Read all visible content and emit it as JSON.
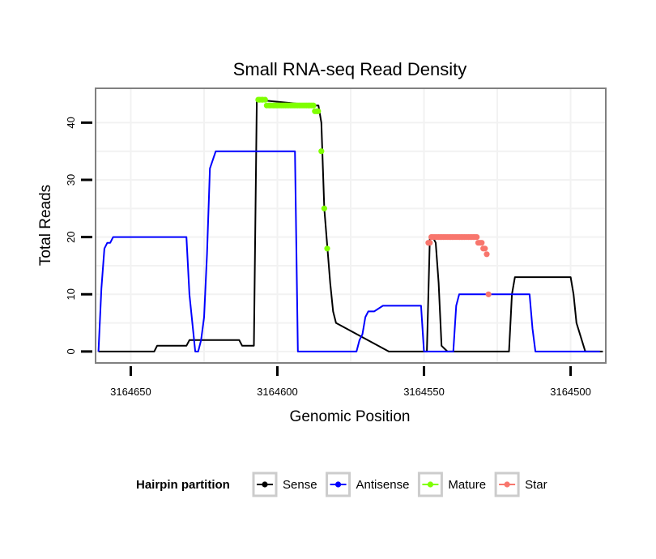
{
  "chart_data": {
    "type": "line",
    "title": "Small RNA-seq Read Density",
    "xlabel": "Genomic Position",
    "ylabel": "Total Reads",
    "x_reversed": true,
    "xlim": [
      3164662,
      3164488
    ],
    "ylim": [
      -2,
      46
    ],
    "x_ticks": [
      3164650,
      3164600,
      3164550,
      3164500
    ],
    "x_tick_labels": [
      "3164650",
      "3164600",
      "3164550",
      "3164500"
    ],
    "y_ticks": [
      0,
      10,
      20,
      30,
      40
    ],
    "y_tick_labels": [
      "0",
      "10",
      "20",
      "30",
      "40"
    ],
    "grid": true,
    "legend_title": "Hairpin partition",
    "legend_position": "bottom",
    "series": [
      {
        "name": "Sense",
        "color": "#000000",
        "points": false,
        "x": [
          3164661,
          3164642,
          3164641,
          3164637,
          3164636,
          3164631,
          3164630,
          3164613,
          3164612,
          3164608,
          3164607,
          3164587,
          3164586,
          3164585,
          3164584,
          3164582,
          3164581,
          3164580,
          3164562,
          3164561,
          3164549,
          3164548,
          3164547,
          3164546,
          3164545,
          3164544,
          3164542,
          3164541,
          3164540,
          3164521,
          3164520,
          3164519,
          3164518,
          3164500,
          3164499,
          3164498,
          3164495,
          3164492,
          3164489
        ],
        "y": [
          0,
          0,
          1,
          1,
          1,
          1,
          2,
          2,
          1,
          1,
          44,
          43,
          43,
          40,
          25,
          12,
          7,
          5,
          0,
          0,
          0,
          20,
          20,
          19,
          12,
          1,
          0,
          0,
          0,
          0,
          10,
          13,
          13,
          13,
          10,
          5,
          0,
          0,
          0
        ]
      },
      {
        "name": "Antisense",
        "color": "#0000ff",
        "points": false,
        "x": [
          3164661,
          3164660,
          3164659,
          3164658,
          3164657,
          3164656,
          3164655,
          3164631,
          3164630,
          3164628,
          3164627,
          3164626,
          3164625,
          3164624,
          3164623,
          3164621,
          3164620,
          3164594,
          3164593,
          3164573,
          3164572,
          3164571,
          3164570,
          3164569,
          3164567,
          3164564,
          3164551,
          3164550,
          3164540,
          3164539,
          3164538,
          3164514,
          3164513,
          3164512,
          3164490
        ],
        "y": [
          0,
          11,
          18,
          19,
          19,
          20,
          20,
          20,
          10,
          0,
          0,
          2,
          6,
          17,
          32,
          35,
          35,
          35,
          0,
          0,
          2,
          3,
          6,
          7,
          7,
          8,
          8,
          0,
          0,
          8,
          10,
          10,
          4,
          0,
          0
        ]
      },
      {
        "name": "Mature",
        "color": "#7fff00",
        "points": true,
        "x": [
          3164606.5,
          3164606,
          3164605.3,
          3164605,
          3164604.2,
          3164603.6,
          3164602.8,
          3164602.2,
          3164601.5,
          3164601,
          3164600.4,
          3164599.8,
          3164599.1,
          3164598.5,
          3164597.9,
          3164597.3,
          3164596.7,
          3164596.1,
          3164595.5,
          3164594.9,
          3164594.3,
          3164593.7,
          3164593.1,
          3164592.5,
          3164591.9,
          3164591.3,
          3164590.7,
          3164590.1,
          3164589.5,
          3164588.9,
          3164588.3,
          3164587.7,
          3164587.2,
          3164586.6,
          3164586.1,
          3164585,
          3164584,
          3164583
        ],
        "y": [
          44,
          44,
          44,
          44,
          44,
          43,
          43,
          43,
          43,
          43,
          43,
          43,
          43,
          43,
          43,
          43,
          43,
          43,
          43,
          43,
          43,
          43,
          43,
          43,
          43,
          43,
          43,
          43,
          43,
          43,
          43,
          43,
          42,
          42,
          42,
          35,
          25,
          18
        ]
      },
      {
        "name": "Star",
        "color": "#f8766d",
        "points": true,
        "x": [
          3164548.5,
          3164548,
          3164547.5,
          3164546.9,
          3164546.3,
          3164545.7,
          3164545.1,
          3164544.5,
          3164543.9,
          3164543.3,
          3164542.7,
          3164542.1,
          3164541.5,
          3164540.9,
          3164540.3,
          3164539.7,
          3164539.1,
          3164538.5,
          3164537.9,
          3164537.3,
          3164536.7,
          3164536.1,
          3164535.5,
          3164534.9,
          3164534.3,
          3164533.7,
          3164533.1,
          3164532.6,
          3164532,
          3164531.5,
          3164530.9,
          3164530.3,
          3164529.8,
          3164529.2,
          3164528.6,
          3164528
        ],
        "y": [
          19,
          19,
          20,
          20,
          20,
          20,
          20,
          20,
          20,
          20,
          20,
          20,
          20,
          20,
          20,
          20,
          20,
          20,
          20,
          20,
          20,
          20,
          20,
          20,
          20,
          20,
          20,
          20,
          20,
          19,
          19,
          19,
          18,
          18,
          17,
          10
        ]
      }
    ]
  }
}
